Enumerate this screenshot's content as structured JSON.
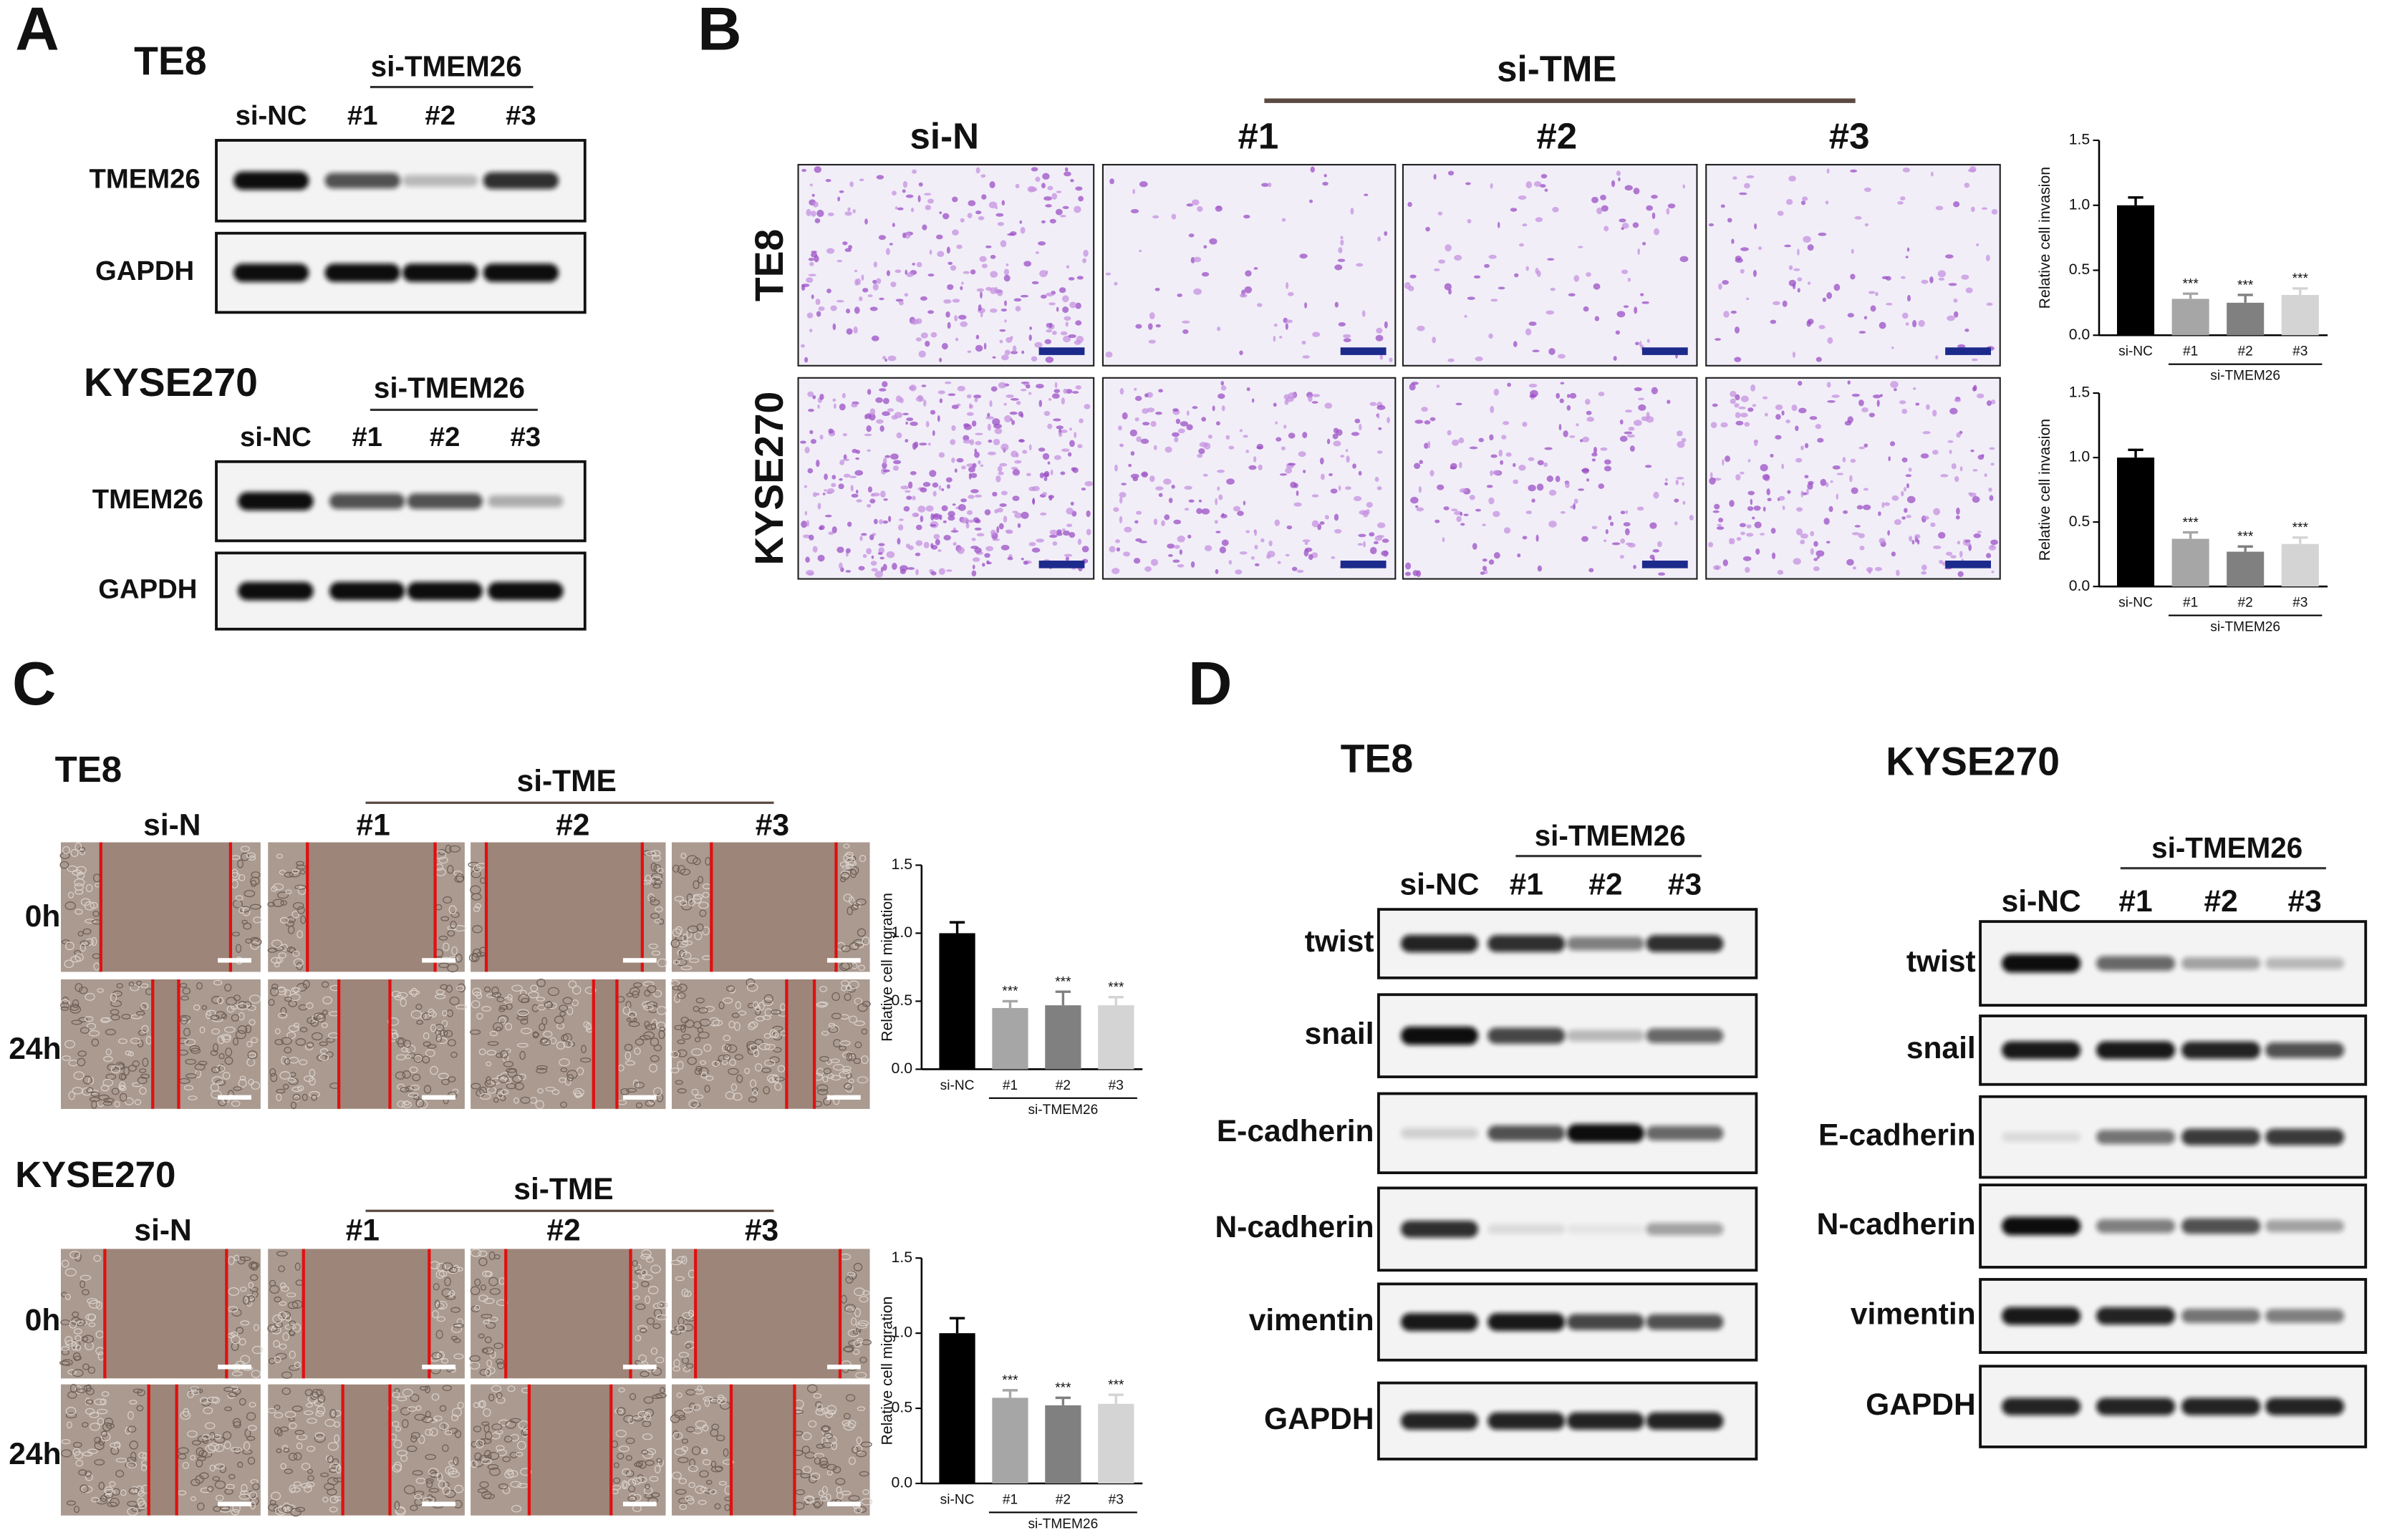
{
  "panels": {
    "A": {
      "label": "A",
      "blots": [
        {
          "title": "TE8",
          "group": "si-TMEM26",
          "lanes": [
            "si-NC",
            "#1",
            "#2",
            "#3"
          ],
          "rows": [
            "TMEM26",
            "GAPDH"
          ]
        },
        {
          "title": "KYSE270",
          "group": "si-TMEM26",
          "lanes": [
            "si-NC",
            "#1",
            "#2",
            "#3"
          ],
          "rows": [
            "TMEM26",
            "GAPDH"
          ]
        }
      ]
    },
    "B": {
      "label": "B",
      "group": "si-TME",
      "columns": [
        "si-N",
        "#1",
        "#2",
        "#3"
      ],
      "rows": [
        "TE8",
        "KYSE270"
      ]
    },
    "C": {
      "label": "C",
      "assays": [
        {
          "title": "TE8",
          "group": "si-TME",
          "columns": [
            "si-N",
            "#1",
            "#2",
            "#3"
          ],
          "rows": [
            "0h",
            "24h"
          ]
        },
        {
          "title": "KYSE270",
          "group": "si-TME",
          "columns": [
            "si-N",
            "#1",
            "#2",
            "#3"
          ],
          "rows": [
            "0h",
            "24h"
          ]
        }
      ]
    },
    "D": {
      "label": "D",
      "blots": [
        {
          "title": "TE8",
          "group": "si-TMEM26",
          "lanes": [
            "si-NC",
            "#1",
            "#2",
            "#3"
          ],
          "rows": [
            "twist",
            "snail",
            "E-cadherin",
            "N-cadherin",
            "vimentin",
            "GAPDH"
          ]
        },
        {
          "title": "KYSE270",
          "group": "si-TMEM26",
          "lanes": [
            "si-NC",
            "#1",
            "#2",
            "#3"
          ],
          "rows": [
            "twist",
            "snail",
            "E-cadherin",
            "N-cadherin",
            "vimentin",
            "GAPDH"
          ]
        }
      ]
    }
  },
  "chart_data": [
    {
      "type": "bar",
      "ylabel": "Relative cell invasion",
      "categories": [
        "si-NC",
        "#1",
        "#2",
        "#3"
      ],
      "values": [
        1.0,
        0.28,
        0.25,
        0.31
      ],
      "errors": [
        0.06,
        0.04,
        0.06,
        0.05
      ],
      "significance": [
        null,
        "***",
        "***",
        "***"
      ],
      "group_label": "si-TMEM26",
      "colors": [
        "#000000",
        "#a6a6a6",
        "#808080",
        "#d4d4d4"
      ],
      "ylim": [
        0,
        1.5
      ],
      "yticks": [
        {
          "value": 0,
          "label": "0.0"
        },
        0.5,
        {
          "value": 1,
          "label": "1.0"
        },
        1.5
      ]
    },
    {
      "type": "bar",
      "ylabel": "Relative cell invasion",
      "categories": [
        "si-NC",
        "#1",
        "#2",
        "#3"
      ],
      "values": [
        1.0,
        0.37,
        0.27,
        0.33
      ],
      "errors": [
        0.06,
        0.05,
        0.04,
        0.05
      ],
      "significance": [
        null,
        "***",
        "***",
        "***"
      ],
      "group_label": "si-TMEM26",
      "colors": [
        "#000000",
        "#a6a6a6",
        "#808080",
        "#d4d4d4"
      ],
      "ylim": [
        0,
        1.5
      ],
      "yticks": [
        {
          "value": 0,
          "label": "0.0"
        },
        0.5,
        {
          "value": 1,
          "label": "1.0"
        },
        1.5
      ]
    },
    {
      "type": "bar",
      "ylabel": "Relative cell migration",
      "categories": [
        "si-NC",
        "#1",
        "#2",
        "#3"
      ],
      "values": [
        1.0,
        0.45,
        0.47,
        0.47
      ],
      "errors": [
        0.08,
        0.05,
        0.1,
        0.06
      ],
      "significance": [
        null,
        "***",
        "***",
        "***"
      ],
      "group_label": "si-TMEM26",
      "colors": [
        "#000000",
        "#a6a6a6",
        "#808080",
        "#d4d4d4"
      ],
      "ylim": [
        0,
        1.5
      ],
      "yticks": [
        {
          "value": 0,
          "label": "0.0"
        },
        0.5,
        {
          "value": 1,
          "label": "1.0"
        },
        1.5
      ]
    },
    {
      "type": "bar",
      "ylabel": "Relative cell migration",
      "categories": [
        "si-NC",
        "#1",
        "#2",
        "#3"
      ],
      "values": [
        1.0,
        0.57,
        0.52,
        0.53
      ],
      "errors": [
        0.1,
        0.05,
        0.05,
        0.06
      ],
      "significance": [
        null,
        "***",
        "***",
        "***"
      ],
      "group_label": "si-TMEM26",
      "colors": [
        "#000000",
        "#a6a6a6",
        "#808080",
        "#d4d4d4"
      ],
      "ylim": [
        0,
        1.5
      ],
      "yticks": [
        {
          "value": 0,
          "label": "0.0"
        },
        0.5,
        {
          "value": 1,
          "label": "1.0"
        },
        1.5
      ]
    }
  ]
}
